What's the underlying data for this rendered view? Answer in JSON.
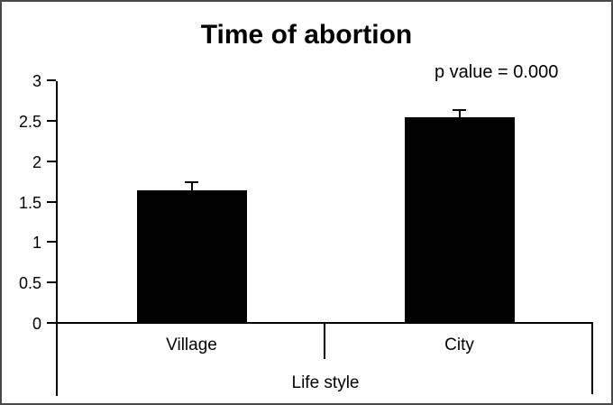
{
  "window": {
    "background": "#ffffff",
    "border_color": "#4a4a4a"
  },
  "chart_data": {
    "type": "bar",
    "title": "Time of abortion",
    "annotation": "p value = 0.000",
    "categories": [
      "Village",
      "City"
    ],
    "values": [
      1.65,
      2.55
    ],
    "errors_plus": [
      0.1,
      0.09
    ],
    "xlabel": "Life style",
    "ylabel": "",
    "ylim": [
      0,
      3
    ],
    "ytick_values": [
      0,
      0.5,
      1,
      1.5,
      2,
      2.5,
      3
    ],
    "ytick_labels": [
      "0",
      "0.5",
      "1",
      "1.5",
      "2",
      "2.5",
      "3"
    ],
    "bar_color": "#000000",
    "axis_color": "#000000",
    "grid": false,
    "legend": false
  }
}
